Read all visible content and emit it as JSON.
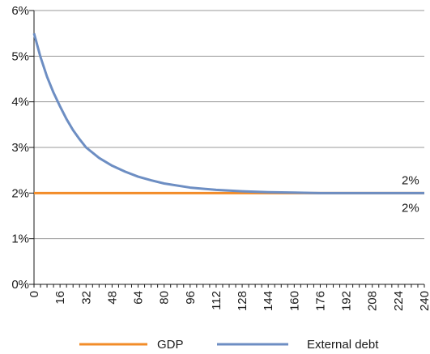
{
  "chart_data": {
    "type": "line",
    "title": "",
    "xlabel": "",
    "ylabel": "",
    "xlim": [
      0,
      240
    ],
    "ylim": [
      0,
      6
    ],
    "x_ticks": [
      "0",
      "16",
      "32",
      "48",
      "64",
      "80",
      "96",
      "112",
      "128",
      "144",
      "160",
      "176",
      "192",
      "208",
      "224",
      "240"
    ],
    "y_ticks": [
      "0%",
      "1%",
      "2%",
      "3%",
      "4%",
      "5%",
      "6%"
    ],
    "grid": "horizontal",
    "legend_position": "bottom",
    "series": [
      {
        "name": "GDP",
        "color": "#f28c28",
        "end_label": "2%",
        "x": [
          0,
          240
        ],
        "y": [
          2.0,
          2.0
        ]
      },
      {
        "name": "External debt",
        "color": "#6d8ec3",
        "end_label": "2%",
        "x": [
          0,
          4,
          8,
          12,
          16,
          20,
          24,
          28,
          32,
          40,
          48,
          56,
          64,
          72,
          80,
          96,
          112,
          128,
          144,
          160,
          176,
          192,
          208,
          224,
          240
        ],
        "y": [
          5.5,
          4.98,
          4.55,
          4.2,
          3.9,
          3.62,
          3.38,
          3.18,
          3.0,
          2.77,
          2.6,
          2.47,
          2.36,
          2.28,
          2.21,
          2.12,
          2.07,
          2.04,
          2.02,
          2.01,
          2.0,
          2.0,
          2.0,
          2.0,
          2.0
        ]
      }
    ]
  }
}
